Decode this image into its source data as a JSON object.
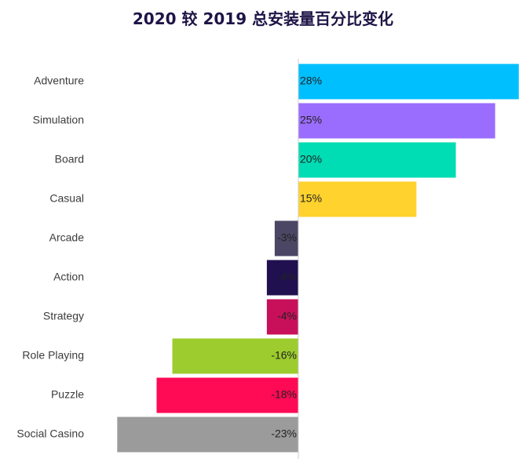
{
  "chart_data": {
    "type": "bar",
    "orientation": "horizontal",
    "title": "2020 较 2019 总安装量百分比变化",
    "xlabel": "",
    "ylabel": "",
    "xlim": [
      -25,
      28
    ],
    "grid": false,
    "legend": "none",
    "categories": [
      "Adventure",
      "Simulation",
      "Board",
      "Casual",
      "Arcade",
      "Action",
      "Strategy",
      "Role Playing",
      "Puzzle",
      "Social Casino"
    ],
    "values": [
      28,
      25,
      20,
      15,
      -3,
      -4,
      -4,
      -16,
      -18,
      -23
    ],
    "labels": [
      "28%",
      "25%",
      "20%",
      "15%",
      "-3%",
      "-4%",
      "-4%",
      "-16%",
      "-18%",
      "-23%"
    ],
    "colors": [
      "#00bfff",
      "#9b6dff",
      "#00dcb4",
      "#ffd22d",
      "#4b4664",
      "#201050",
      "#c8105a",
      "#9ccc2d",
      "#ff0a55",
      "#9b9b9b"
    ]
  }
}
